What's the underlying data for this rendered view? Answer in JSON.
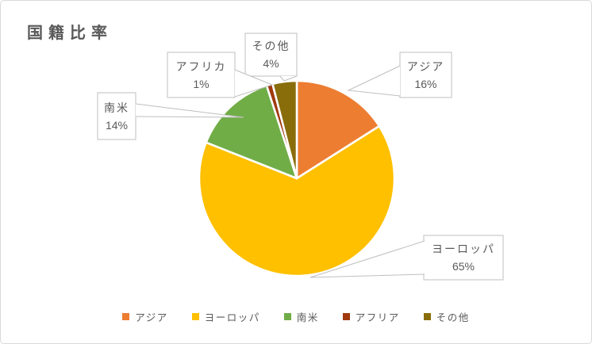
{
  "title": "国籍比率",
  "chart_data": {
    "type": "pie",
    "categories": [
      "アジア",
      "ヨーロッパ",
      "南米",
      "アフリカ",
      "その他"
    ],
    "values": [
      16,
      65,
      14,
      1,
      4
    ],
    "unit": "%",
    "colors": [
      "#ED7D31",
      "#FFC000",
      "#70AD47",
      "#A0390E",
      "#8A6D0B"
    ],
    "start_angle_deg": 0,
    "direction": "clockwise",
    "slice_border_color": "#FFFFFF",
    "data_labels": [
      {
        "name": "アジア",
        "pct": "16%"
      },
      {
        "name": "ヨーロッパ",
        "pct": "65%"
      },
      {
        "name": "南米",
        "pct": "14%"
      },
      {
        "name": "アフリカ",
        "pct": "1%"
      },
      {
        "name": "その他",
        "pct": "4%"
      }
    ],
    "legend": {
      "position": "bottom",
      "items": [
        "アジア",
        "ヨーロッパ",
        "南米",
        "アフリア",
        "その他"
      ]
    }
  }
}
